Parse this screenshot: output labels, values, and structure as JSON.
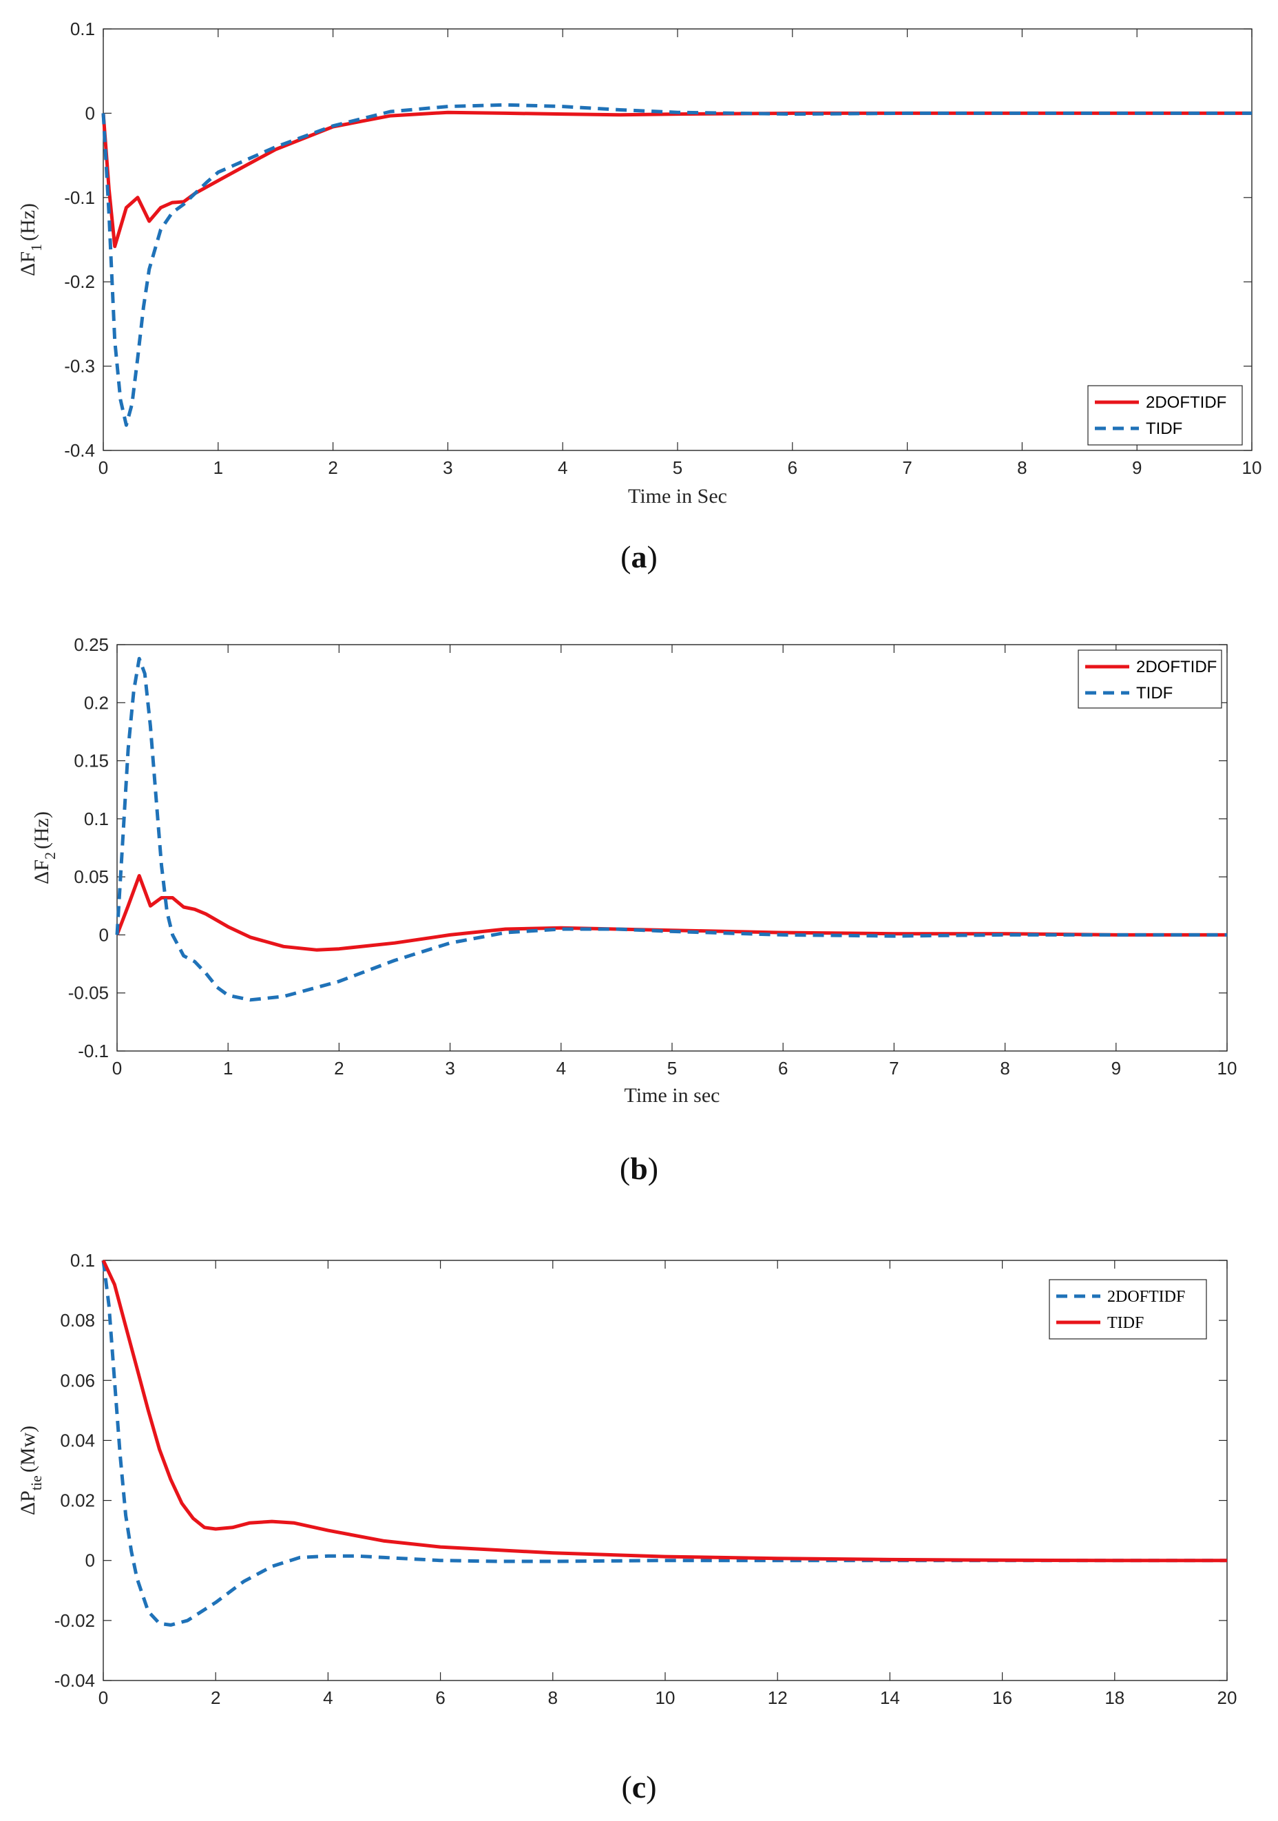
{
  "chart_data": [
    {
      "type": "line",
      "panel": "a",
      "caption_letter": "a",
      "ylabel_main": "ΔF",
      "ylabel_sub": "1",
      "ylabel_unit": "(Hz)",
      "xlabel": "Time in Sec",
      "xlim": [
        0,
        10
      ],
      "ylim": [
        -0.4,
        0.1
      ],
      "xticks": [
        "0",
        "1",
        "2",
        "3",
        "4",
        "5",
        "6",
        "7",
        "8",
        "9",
        "10"
      ],
      "yticks": [
        "0.1",
        "0",
        "-0.1",
        "-0.2",
        "-0.3",
        "-0.4"
      ],
      "ytick_values": [
        0.1,
        0,
        -0.1,
        -0.2,
        -0.3,
        -0.4
      ],
      "legend_position": "bottom-right",
      "series": [
        {
          "name": "2DOFTIDF",
          "color": "#e8141a",
          "dash": "solid",
          "x": [
            0,
            0.05,
            0.1,
            0.2,
            0.3,
            0.4,
            0.5,
            0.6,
            0.7,
            0.8,
            1.0,
            1.2,
            1.5,
            2.0,
            2.5,
            3.0,
            3.5,
            4.0,
            4.5,
            5.0,
            6.0,
            7.0,
            8.0,
            9.0,
            10.0
          ],
          "y": [
            0,
            -0.09,
            -0.158,
            -0.112,
            -0.1,
            -0.128,
            -0.112,
            -0.106,
            -0.105,
            -0.095,
            -0.08,
            -0.065,
            -0.043,
            -0.016,
            -0.003,
            0.001,
            0.0,
            -0.001,
            -0.002,
            -0.001,
            0.0,
            0.0,
            0.0,
            0.0,
            0.0
          ]
        },
        {
          "name": "TIDF",
          "color": "#1f72b8",
          "dash": "dashed",
          "x": [
            0,
            0.05,
            0.1,
            0.15,
            0.2,
            0.25,
            0.3,
            0.35,
            0.4,
            0.5,
            0.6,
            0.7,
            0.8,
            0.9,
            1.0,
            1.2,
            1.5,
            2.0,
            2.5,
            3.0,
            3.5,
            4.0,
            4.5,
            5.0,
            6.0,
            7.0,
            8.0,
            9.0,
            10.0
          ],
          "y": [
            0,
            -0.12,
            -0.27,
            -0.34,
            -0.37,
            -0.345,
            -0.29,
            -0.23,
            -0.185,
            -0.138,
            -0.118,
            -0.108,
            -0.095,
            -0.082,
            -0.07,
            -0.058,
            -0.04,
            -0.015,
            0.002,
            0.008,
            0.01,
            0.008,
            0.004,
            0.001,
            -0.001,
            0.0,
            0.0,
            0.0,
            0.0
          ]
        }
      ]
    },
    {
      "type": "line",
      "panel": "b",
      "caption_letter": "b",
      "ylabel_main": "ΔF",
      "ylabel_sub": "2",
      "ylabel_unit": "(Hz)",
      "xlabel": "Time in sec",
      "xlim": [
        0,
        10
      ],
      "ylim": [
        -0.1,
        0.25
      ],
      "xticks": [
        "0",
        "1",
        "2",
        "3",
        "4",
        "5",
        "6",
        "7",
        "8",
        "9",
        "10"
      ],
      "yticks": [
        "0.25",
        "0.2",
        "0.15",
        "0.1",
        "0.05",
        "0",
        "-0.05",
        "-0.1"
      ],
      "ytick_values": [
        0.25,
        0.2,
        0.15,
        0.1,
        0.05,
        0,
        -0.05,
        -0.1
      ],
      "legend_position": "top-right",
      "series": [
        {
          "name": "2DOFTIDF",
          "color": "#e8141a",
          "dash": "solid",
          "x": [
            0,
            0.1,
            0.2,
            0.3,
            0.4,
            0.5,
            0.6,
            0.7,
            0.8,
            1.0,
            1.2,
            1.5,
            1.8,
            2.0,
            2.5,
            3.0,
            3.5,
            4.0,
            4.5,
            5.0,
            6.0,
            7.0,
            8.0,
            9.0,
            10.0
          ],
          "y": [
            0,
            0.025,
            0.051,
            0.025,
            0.032,
            0.032,
            0.024,
            0.022,
            0.018,
            0.007,
            -0.002,
            -0.01,
            -0.013,
            -0.012,
            -0.007,
            0.0,
            0.005,
            0.006,
            0.005,
            0.004,
            0.002,
            0.001,
            0.001,
            0.0,
            0.0
          ]
        },
        {
          "name": "TIDF",
          "color": "#1f72b8",
          "dash": "dashed",
          "x": [
            0,
            0.05,
            0.1,
            0.15,
            0.2,
            0.25,
            0.3,
            0.35,
            0.4,
            0.45,
            0.5,
            0.6,
            0.7,
            0.8,
            0.9,
            1.0,
            1.2,
            1.5,
            2.0,
            2.5,
            3.0,
            3.5,
            4.0,
            4.5,
            5.0,
            6.0,
            7.0,
            8.0,
            9.0,
            10.0
          ],
          "y": [
            0,
            0.08,
            0.16,
            0.21,
            0.238,
            0.225,
            0.18,
            0.12,
            0.06,
            0.02,
            0.0,
            -0.018,
            -0.023,
            -0.033,
            -0.045,
            -0.052,
            -0.056,
            -0.053,
            -0.04,
            -0.022,
            -0.007,
            0.002,
            0.005,
            0.005,
            0.003,
            0.0,
            -0.001,
            0.0,
            0.0,
            0.0
          ]
        }
      ]
    },
    {
      "type": "line",
      "panel": "c",
      "caption_letter": "c",
      "ylabel_main": "ΔP",
      "ylabel_sub": "tie",
      "ylabel_unit": "(Mw)",
      "xlabel": "",
      "xlim": [
        0,
        20
      ],
      "ylim": [
        -0.04,
        0.1
      ],
      "xticks": [
        "0",
        "2",
        "4",
        "6",
        "8",
        "10",
        "12",
        "14",
        "16",
        "18",
        "20"
      ],
      "yticks": [
        "0.1",
        "0.08",
        "0.06",
        "0.04",
        "0.02",
        "0",
        "-0.02",
        "-0.04"
      ],
      "ytick_values": [
        0.1,
        0.08,
        0.06,
        0.04,
        0.02,
        0,
        -0.02,
        -0.04
      ],
      "legend_position": "top-right",
      "series": [
        {
          "name": "2DOFTIDF",
          "color": "#1f72b8",
          "dash": "dashed",
          "x": [
            0,
            0.1,
            0.2,
            0.3,
            0.4,
            0.5,
            0.6,
            0.8,
            1.0,
            1.2,
            1.5,
            2.0,
            2.5,
            3.0,
            3.5,
            4.0,
            4.5,
            5.0,
            6.0,
            7.0,
            8.0,
            10.0,
            12.0,
            14.0,
            16.0,
            18.0,
            20.0
          ],
          "y": [
            0.1,
            0.085,
            0.06,
            0.035,
            0.015,
            0.003,
            -0.006,
            -0.017,
            -0.021,
            -0.0215,
            -0.02,
            -0.014,
            -0.007,
            -0.002,
            0.001,
            0.0015,
            0.0015,
            0.001,
            0.0,
            -0.0003,
            -0.0003,
            0.0,
            0.0,
            0.0,
            0.0,
            0.0,
            0.0
          ]
        },
        {
          "name": "TIDF",
          "color": "#e8141a",
          "dash": "solid",
          "x": [
            0,
            0.2,
            0.4,
            0.6,
            0.8,
            1.0,
            1.2,
            1.4,
            1.6,
            1.8,
            2.0,
            2.3,
            2.6,
            3.0,
            3.4,
            4.0,
            5.0,
            6.0,
            7.0,
            8.0,
            10.0,
            12.0,
            14.0,
            16.0,
            18.0,
            20.0
          ],
          "y": [
            0.1,
            0.092,
            0.078,
            0.064,
            0.05,
            0.037,
            0.027,
            0.019,
            0.014,
            0.011,
            0.0105,
            0.011,
            0.0125,
            0.013,
            0.0125,
            0.01,
            0.0065,
            0.0045,
            0.0035,
            0.0025,
            0.0013,
            0.0007,
            0.0003,
            0.0001,
            0.0,
            0.0
          ]
        }
      ]
    }
  ]
}
